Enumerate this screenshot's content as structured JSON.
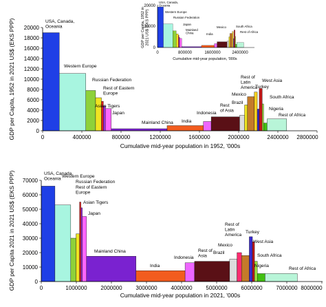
{
  "chart_data": [
    {
      "type": "bar",
      "xlabel": "Cumulative mid-year population in 1952, '000s",
      "ylabel": "GDP per Capita, 1952 in 2021 US$ (EKS PPP)",
      "xlim": [
        0,
        2800000
      ],
      "ylim": [
        0,
        20000
      ],
      "xticks": [
        "0",
        "400000",
        "800000",
        "1200000",
        "1600000",
        "2000000",
        "2400000",
        "2800000"
      ],
      "yticks": [
        "0",
        "2000",
        "4000",
        "6000",
        "8000",
        "10000",
        "12000",
        "14000",
        "16000",
        "18000",
        "20000"
      ],
      "bars": [
        {
          "label": "USA, Canada, Oceania",
          "x0": 0,
          "x1": 170000,
          "value": 19000,
          "color": "#1f3fe6"
        },
        {
          "label": "Western Europe",
          "x0": 170000,
          "x1": 440000,
          "value": 11100,
          "color": "#a8f5e0"
        },
        {
          "label": "Russian Federation",
          "x0": 440000,
          "x1": 540000,
          "value": 7800,
          "color": "#8ed13a"
        },
        {
          "label": "Rest of Eastern Europe",
          "x0": 540000,
          "x1": 600000,
          "value": 6400,
          "color": "#f0e422"
        },
        {
          "label": "",
          "x0": 600000,
          "x1": 620000,
          "value": 5700,
          "color": "#e02020"
        },
        {
          "label": "Asian Tigers",
          "x0": 620000,
          "x1": 640000,
          "value": 4800,
          "color": "#9b30d8"
        },
        {
          "label": "Japan",
          "x0": 640000,
          "x1": 700000,
          "value": 4300,
          "color": "#ff66ff"
        },
        {
          "label": "Mainland China",
          "x0": 700000,
          "x1": 1270000,
          "value": 400,
          "color": "#7a22d0"
        },
        {
          "label": "India",
          "x0": 1270000,
          "x1": 1640000,
          "value": 1000,
          "color": "#f25c1e"
        },
        {
          "label": "Indonesia",
          "x0": 1640000,
          "x1": 1720000,
          "value": 1800,
          "color": "#ee66ff"
        },
        {
          "label": "Rest of Asia",
          "x0": 1720000,
          "x1": 2010000,
          "value": 2700,
          "color": "#5a1016"
        },
        {
          "label": "Brazil",
          "x0": 2010000,
          "x1": 2060000,
          "value": 3000,
          "color": "#dcdcdc"
        },
        {
          "label": "Mexico",
          "x0": 2060000,
          "x1": 2090000,
          "value": 5000,
          "color": "#f0e422"
        },
        {
          "label": "Rest of Latin America",
          "x0": 2090000,
          "x1": 2160000,
          "value": 6600,
          "color": "#c47a2a"
        },
        {
          "label": "",
          "x0": 2160000,
          "x1": 2190000,
          "value": 7500,
          "color": "#f5d020"
        },
        {
          "label": "Turkey",
          "x0": 2190000,
          "x1": 2210000,
          "value": 4200,
          "color": "#3a2bd0"
        },
        {
          "label": "West Asia",
          "x0": 2210000,
          "x1": 2240000,
          "value": 8200,
          "color": "#c01818"
        },
        {
          "label": "South Africa",
          "x0": 2240000,
          "x1": 2255000,
          "value": 5200,
          "color": "#9ee040"
        },
        {
          "label": "Nigeria",
          "x0": 2255000,
          "x1": 2290000,
          "value": 1500,
          "color": "#40c010"
        },
        {
          "label": "Rest of Africa",
          "x0": 2290000,
          "x1": 2490000,
          "value": 2300,
          "color": "#b8f5d8"
        }
      ],
      "inset": {
        "xlabel": "Cumulative mid-year population, '000s",
        "ylabel": "GDP per Capita, 1952 in 2021 US$ (EKS PPP)",
        "xticks": [
          "0",
          "800000",
          "1600000",
          "2400000"
        ],
        "yticks": [
          "0",
          "10000",
          "20000"
        ],
        "labels": [
          "USA, Canada, Oceania",
          "Western Europe",
          "Russian Federation",
          "Japan",
          "Mainland China",
          "India",
          "Mexico",
          "South Africa",
          "Rest of Africa"
        ]
      }
    },
    {
      "type": "bar",
      "xlabel": "Cumulative mid-year population in 2021, '000s",
      "ylabel": "GDP per Capita 2021 in 2021 US$ (EKS PPP)",
      "xlim": [
        0,
        8000000
      ],
      "ylim": [
        0,
        70000
      ],
      "xticks": [
        "0",
        "1000000",
        "2000000",
        "3000000",
        "4000000",
        "5000000",
        "6000000",
        "7000000",
        "8000000"
      ],
      "yticks": [
        "0",
        "10000",
        "20000",
        "30000",
        "40000",
        "50000",
        "60000",
        "70000"
      ],
      "bars": [
        {
          "label": "USA, Canada, Oceania",
          "x0": 0,
          "x1": 390000,
          "value": 66000,
          "color": "#1f3fe6"
        },
        {
          "label": "Western Europe",
          "x0": 390000,
          "x1": 840000,
          "value": 53000,
          "color": "#a8f5e0"
        },
        {
          "label": "",
          "x0": 840000,
          "x1": 990000,
          "value": 30000,
          "color": "#8ed13a"
        },
        {
          "label": "Rest of Eastern Europe",
          "x0": 990000,
          "x1": 1090000,
          "value": 33000,
          "color": "#f0e422"
        },
        {
          "label": "Russian Federation",
          "x0": 1090000,
          "x1": 1130000,
          "value": 55000,
          "color": "#e02020"
        },
        {
          "label": "Asian Tigers",
          "x0": 1130000,
          "x1": 1170000,
          "value": 51000,
          "color": "#9b30d8"
        },
        {
          "label": "Japan",
          "x0": 1170000,
          "x1": 1290000,
          "value": 45000,
          "color": "#ff66ff"
        },
        {
          "label": "Mainland China",
          "x0": 1290000,
          "x1": 2700000,
          "value": 17500,
          "color": "#7a22d0"
        },
        {
          "label": "India",
          "x0": 2700000,
          "x1": 4100000,
          "value": 7500,
          "color": "#f25c1e"
        },
        {
          "label": "Indonesia",
          "x0": 4100000,
          "x1": 4370000,
          "value": 13000,
          "color": "#ee66ff"
        },
        {
          "label": "Rest of Asia",
          "x0": 4370000,
          "x1": 5370000,
          "value": 14000,
          "color": "#5a1016"
        },
        {
          "label": "Brazil",
          "x0": 5370000,
          "x1": 5580000,
          "value": 15500,
          "color": "#dcdcdc"
        },
        {
          "label": "Mexico",
          "x0": 5580000,
          "x1": 5710000,
          "value": 20000,
          "color": "#ff2c70"
        },
        {
          "label": "Rest of Latin America",
          "x0": 5710000,
          "x1": 5930000,
          "value": 18000,
          "color": "#c47a2a"
        },
        {
          "label": "Turkey",
          "x0": 5930000,
          "x1": 6020000,
          "value": 31000,
          "color": "#3a2bd0"
        },
        {
          "label": "West Asia",
          "x0": 6020000,
          "x1": 6080000,
          "value": 27500,
          "color": "#c01818"
        },
        {
          "label": "South Africa",
          "x0": 6080000,
          "x1": 6160000,
          "value": 14000,
          "color": "#9ee040"
        },
        {
          "label": "Nigeria",
          "x0": 6160000,
          "x1": 6380000,
          "value": 5500,
          "color": "#40c010"
        },
        {
          "label": "Rest of Africa",
          "x0": 6380000,
          "x1": 7300000,
          "value": 5500,
          "color": "#b8f5d8"
        }
      ]
    }
  ]
}
